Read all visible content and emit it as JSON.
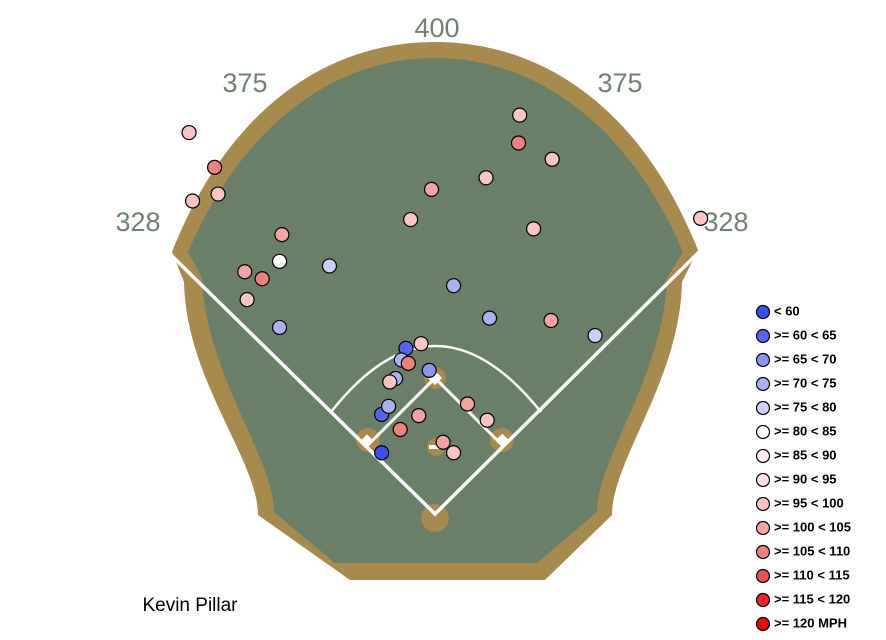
{
  "chart_data": {
    "type": "scatter",
    "player": "Kevin Pillar",
    "fence_distances": [
      328,
      375,
      400,
      375,
      328
    ],
    "series": [
      {
        "name": "< 60",
        "color": "#3b4ef0",
        "x": [
          -46
        ],
        "y": [
          58
        ]
      },
      {
        "name": ">= 60 < 65",
        "color": "#5563ee",
        "x": [
          -25,
          -46
        ],
        "y": [
          148,
          91
        ]
      },
      {
        "name": ">= 65 < 70",
        "color": "#8c92ee",
        "x": [
          -5
        ],
        "y": [
          129
        ]
      },
      {
        "name": ">= 70 < 75",
        "color": "#adb0f0",
        "x": [
          16,
          47,
          -134,
          -29,
          -34,
          -40
        ],
        "y": [
          202,
          174,
          166,
          138,
          122,
          98
        ]
      },
      {
        "name": ">= 75 < 80",
        "color": "#cdcff6",
        "x": [
          -91,
          138
        ],
        "y": [
          219,
          159
        ]
      },
      {
        "name": ">= 80 < 85",
        "color": "#ffffff",
        "x": [
          -134
        ],
        "y": [
          223
        ]
      },
      {
        "name": ">= 85 < 90",
        "color": "#fff0f0",
        "x": [],
        "y": []
      },
      {
        "name": ">= 90 < 95",
        "color": "#fde0e0",
        "x": [],
        "y": []
      },
      {
        "name": ">= 95 < 100",
        "color": "#f9c4c4",
        "x": [
          -212,
          -187,
          -209,
          73,
          101,
          44,
          -21,
          85,
          229,
          -162,
          -12,
          -39,
          45,
          16
        ],
        "y": [
          334,
          281,
          275,
          349,
          311,
          295,
          259,
          251,
          260,
          190,
          152,
          119,
          86,
          58
        ]
      },
      {
        "name": ">= 100 < 105",
        "color": "#f4a3a3",
        "x": [
          -3,
          -132,
          -164,
          100,
          -14,
          28,
          7
        ],
        "y": [
          285,
          246,
          214,
          172,
          90,
          100,
          67
        ]
      },
      {
        "name": ">= 105 < 110",
        "color": "#f07f7f",
        "x": [
          -190,
          72,
          -149,
          -23,
          -30
        ],
        "y": [
          304,
          325,
          208,
          135,
          78
        ]
      },
      {
        "name": ">= 110 < 115",
        "color": "#ee4f4f",
        "x": [],
        "y": []
      },
      {
        "name": ">= 115 < 120",
        "color": "#ec2626",
        "x": [],
        "y": []
      },
      {
        "name": ">= 120 MPH",
        "color": "#ea0a0a",
        "x": [],
        "y": []
      }
    ]
  }
}
